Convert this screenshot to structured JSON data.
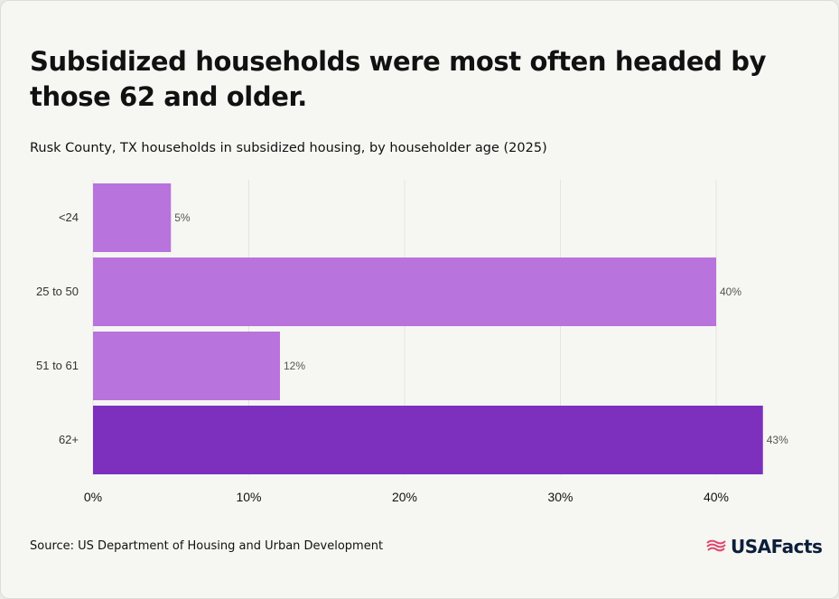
{
  "header": {
    "title": "Subsidized households were most often headed by those 62 and older.",
    "subtitle": "Rusk County, TX households in subsidized housing, by householder age (2025)"
  },
  "footer": {
    "source": "Source: US Department of Housing and Urban Development",
    "logo_text": "USAFacts"
  },
  "colors": {
    "bar": "#b973dd",
    "highlight": "#7d2fbe",
    "grid": "#e4e4e0"
  },
  "chart_data": {
    "type": "bar",
    "orientation": "horizontal",
    "categories": [
      "<24",
      "25 to 50",
      "51 to 61",
      "62+"
    ],
    "values": [
      5,
      40,
      12,
      43
    ],
    "data_labels": [
      "5%",
      "40%",
      "12%",
      "43%"
    ],
    "highlight_index": 3,
    "xlim": [
      0,
      40
    ],
    "xticks": [
      0,
      10,
      20,
      30,
      40
    ],
    "xtick_labels": [
      "0%",
      "10%",
      "20%",
      "30%",
      "40%"
    ],
    "grid": true,
    "title": "Subsidized households were most often headed by those 62 and older.",
    "subtitle": "Rusk County, TX households in subsidized housing, by householder age (2025)"
  }
}
